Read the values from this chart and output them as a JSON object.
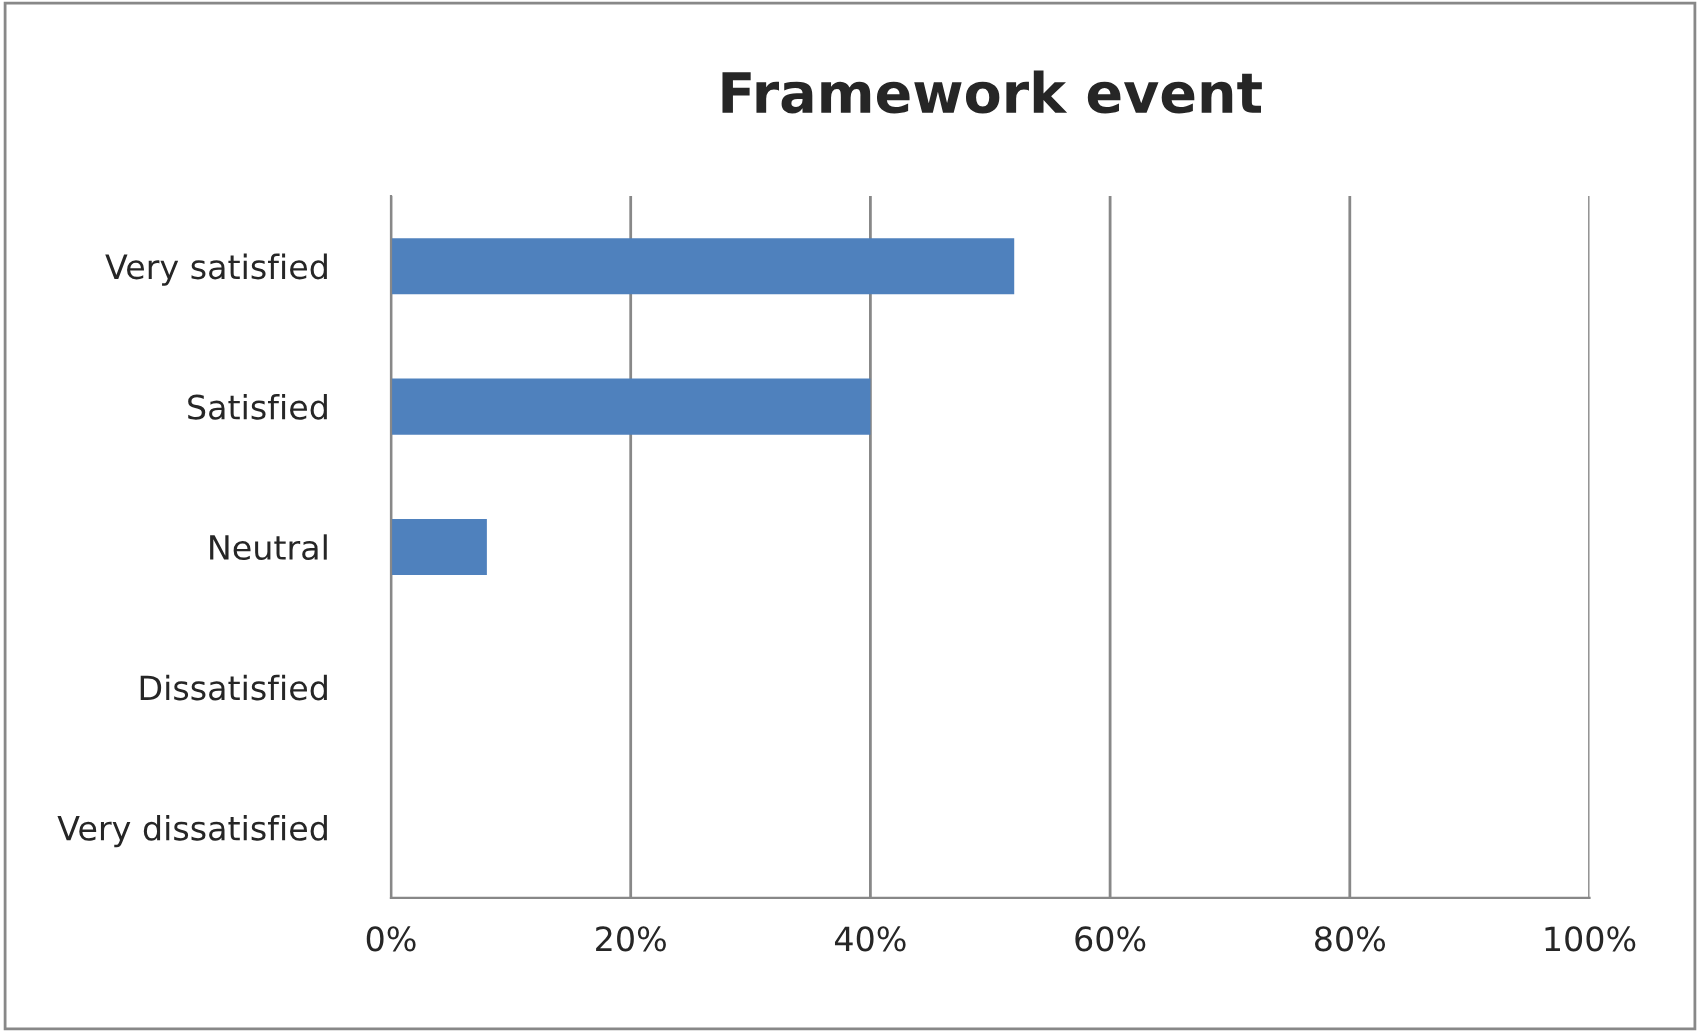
{
  "chart_data": {
    "type": "bar",
    "title": "Framework event",
    "orientation": "horizontal",
    "categories": [
      "Very satisfied",
      "Satisfied",
      "Neutral",
      "Dissatisfied",
      "Very dissatisfied"
    ],
    "values": [
      52,
      40,
      8,
      0,
      0
    ],
    "color": "#4f81bd",
    "xlim": [
      0,
      100
    ],
    "xticks": [
      {
        "value": 0,
        "label": "0%"
      },
      {
        "value": 20,
        "label": "20%"
      },
      {
        "value": 40,
        "label": "40%"
      },
      {
        "value": 60,
        "label": "60%"
      },
      {
        "value": 80,
        "label": "80%"
      },
      {
        "value": 100,
        "label": "100%"
      }
    ],
    "grid": "x",
    "legend": false
  }
}
